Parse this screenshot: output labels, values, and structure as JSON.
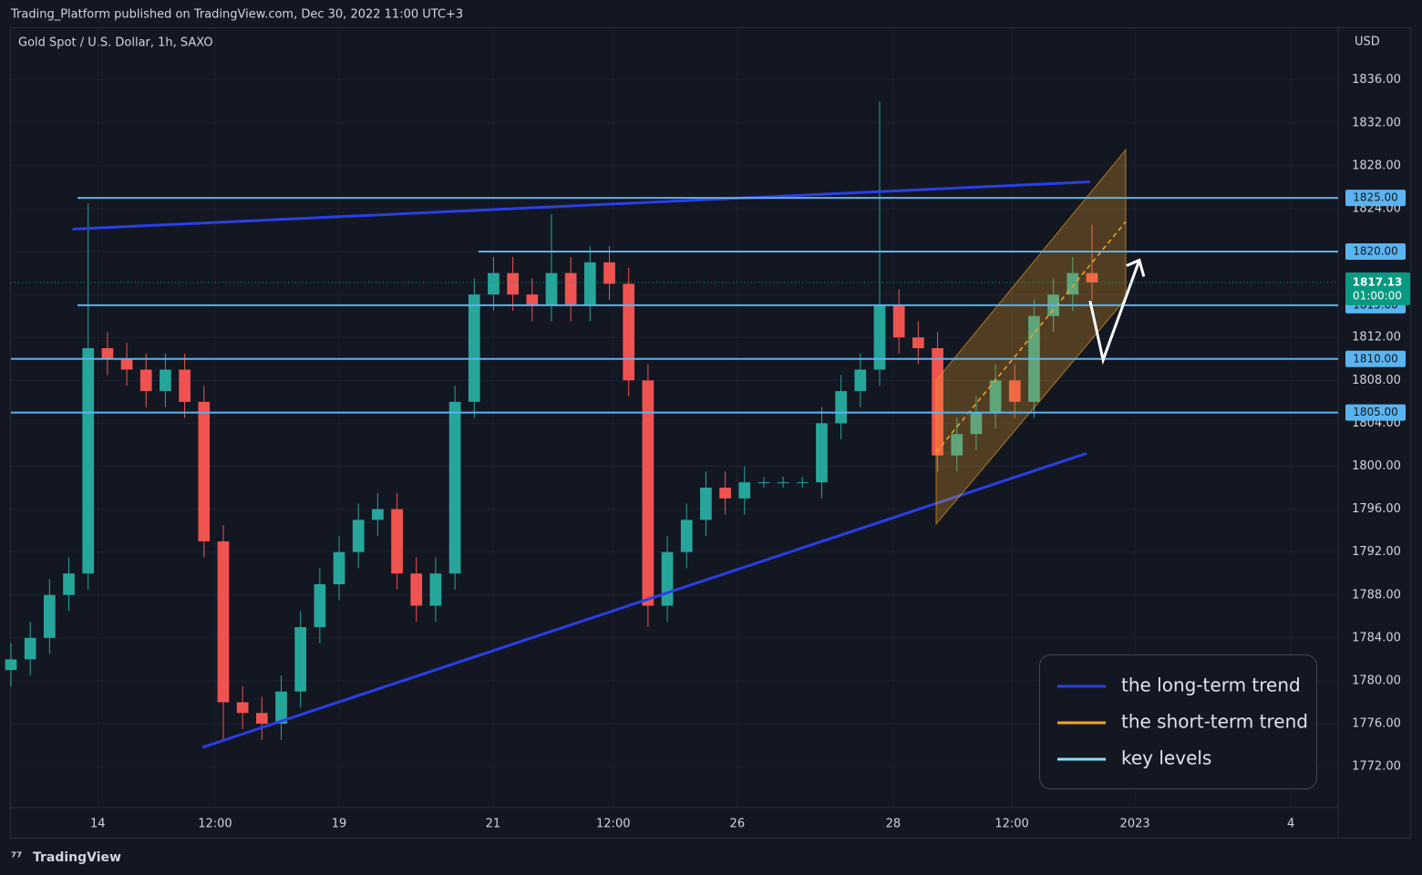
{
  "header": "Trading_Platform published on TradingView.com, Dec 30, 2022 11:00 UTC+3",
  "footer": "TradingView",
  "chart_data": {
    "type": "candlestick",
    "title": "Gold Spot / U.S. Dollar, 1h, SAXO",
    "currency": "USD",
    "up_color": "#26a69a",
    "down_color": "#ef5350",
    "xlim": [
      0,
      275
    ],
    "ylim": [
      1765.3,
      1840.9
    ],
    "xticks": [
      {
        "value": 18,
        "label": "14"
      },
      {
        "value": 42.3,
        "label": "12:00"
      },
      {
        "value": 68,
        "label": "19"
      },
      {
        "value": 99.9,
        "label": "21"
      },
      {
        "value": 124.8,
        "label": "12:00"
      },
      {
        "value": 150.5,
        "label": "26"
      },
      {
        "value": 182.8,
        "label": "28"
      },
      {
        "value": 207.4,
        "label": "12:00"
      },
      {
        "value": 232.9,
        "label": "2023"
      },
      {
        "value": 265.2,
        "label": "4"
      }
    ],
    "yticks": [
      {
        "value": 1836,
        "label": "1836.00"
      },
      {
        "value": 1832,
        "label": "1832.00"
      },
      {
        "value": 1828,
        "label": "1828.00"
      },
      {
        "value": 1824,
        "label": "1824.00"
      },
      {
        "value": 1820,
        "label": "1820.00"
      },
      {
        "value": 1816,
        "label": "1816.00"
      },
      {
        "value": 1812,
        "label": "1812.00"
      },
      {
        "value": 1808,
        "label": "1808.00"
      },
      {
        "value": 1804,
        "label": "1804.00"
      },
      {
        "value": 1800,
        "label": "1800.00"
      },
      {
        "value": 1796,
        "label": "1796.00"
      },
      {
        "value": 1792,
        "label": "1792.00"
      },
      {
        "value": 1788,
        "label": "1788.00"
      },
      {
        "value": 1784,
        "label": "1784.00"
      },
      {
        "value": 1780,
        "label": "1780.00"
      },
      {
        "value": 1776,
        "label": "1776.00"
      },
      {
        "value": 1772,
        "label": "1772.00"
      }
    ],
    "x": [
      0,
      4,
      8,
      12,
      16,
      20,
      24,
      28,
      32,
      36,
      40,
      44,
      48,
      52,
      56,
      60,
      64,
      68,
      72,
      76,
      80,
      84,
      88,
      92,
      96,
      100,
      104,
      108,
      112,
      116,
      120,
      124,
      128,
      132,
      136,
      140,
      144,
      148,
      152,
      156,
      160,
      164,
      168,
      172,
      176,
      180,
      184,
      188,
      192,
      196,
      200,
      204,
      208,
      212,
      216,
      220,
      224
    ],
    "open": [
      1781,
      1782,
      1784,
      1788,
      1790,
      1811,
      1810,
      1809,
      1807,
      1809,
      1806,
      1793,
      1778,
      1777,
      1776,
      1779,
      1785,
      1789,
      1792,
      1795,
      1796,
      1790,
      1787,
      1790,
      1806,
      1816,
      1818,
      1816,
      1815,
      1818,
      1815,
      1819,
      1817,
      1808,
      1787,
      1792,
      1795,
      1798,
      1797,
      1798.5,
      1798.5,
      1798.5,
      1798.5,
      1804,
      1807,
      1809,
      1815,
      1812,
      1811,
      1801,
      1803,
      1805,
      1808,
      1806,
      1814,
      1816,
      1818
    ],
    "high": [
      1783.5,
      1785.5,
      1789.5,
      1791.5,
      1824.5,
      1812.5,
      1811.5,
      1810.5,
      1810.5,
      1810.5,
      1807.5,
      1794.5,
      1779.5,
      1778.5,
      1780.5,
      1786.5,
      1790.5,
      1793.5,
      1796.5,
      1797.5,
      1797.5,
      1791.5,
      1791.5,
      1807.5,
      1817.5,
      1819.5,
      1819.5,
      1817.5,
      1823.5,
      1819.5,
      1820.5,
      1820.5,
      1818.5,
      1809.5,
      1793.5,
      1796.5,
      1799.5,
      1799.5,
      1800,
      1799,
      1799,
      1799,
      1805.5,
      1808.5,
      1810.5,
      1834,
      1816.5,
      1813.5,
      1812.5,
      1804.5,
      1806.5,
      1809.5,
      1809.5,
      1815.5,
      1817.5,
      1819.5,
      1822.5
    ],
    "low": [
      1779.5,
      1780.5,
      1782.5,
      1786.5,
      1788.5,
      1808.5,
      1807.5,
      1805.5,
      1805.5,
      1804.5,
      1791.5,
      1774.5,
      1775.5,
      1774.5,
      1774.5,
      1777.5,
      1783.5,
      1787.5,
      1790.5,
      1793.5,
      1788.5,
      1785.5,
      1785.5,
      1788.5,
      1804.5,
      1814.5,
      1814.5,
      1813.5,
      1813.5,
      1813.5,
      1813.5,
      1815.5,
      1806.5,
      1785,
      1785.5,
      1790.5,
      1793.5,
      1795.5,
      1795.5,
      1798,
      1798,
      1798,
      1797,
      1802.5,
      1805.5,
      1807.5,
      1810.5,
      1809.5,
      1799.5,
      1799.5,
      1801.5,
      1803.5,
      1804.5,
      1804.5,
      1812.5,
      1814.5,
      1815.5
    ],
    "close": [
      1782,
      1784,
      1788,
      1790,
      1811,
      1810,
      1809,
      1807,
      1809,
      1806,
      1793,
      1778,
      1777,
      1776,
      1779,
      1785,
      1789,
      1792,
      1795,
      1796,
      1790,
      1787,
      1790,
      1806,
      1816,
      1818,
      1816,
      1815,
      1818,
      1815,
      1819,
      1817,
      1808,
      1787,
      1792,
      1795,
      1798,
      1797,
      1798.5,
      1798.5,
      1798.5,
      1798.5,
      1804,
      1807,
      1809,
      1815,
      1812,
      1811,
      1801,
      1803,
      1805,
      1808,
      1806,
      1814,
      1816,
      1818,
      1817.13
    ],
    "last_price": 1817.13,
    "last_price_color": "#089981",
    "countdown": "01:00:00",
    "legend": [
      {
        "label": "the long-term trend",
        "color": "#2a3fe6",
        "lines": [
          {
            "x": [
              12.8,
              223.6
            ],
            "y": [
              1822.1,
              1826.5
            ]
          },
          {
            "x": [
              39.7,
              222.9
            ],
            "y": [
              1773.8,
              1801.2
            ]
          }
        ]
      },
      {
        "label": "the short-term trend",
        "color": "#f5a623",
        "channel": {
          "x": [
            191.7,
            231
          ],
          "upper": [
            1808,
            1829.5
          ],
          "lower": [
            1794.6,
            1815.6
          ],
          "mid": [
            1801.3,
            1822.8
          ]
        }
      },
      {
        "label": "key levels",
        "color": "#8ee0f5",
        "levels": [
          {
            "value": 1825,
            "label": "1825.00",
            "start": 13.8
          },
          {
            "value": 1820,
            "label": "1820.00",
            "start": 96.9
          },
          {
            "value": 1815,
            "label": "1815.00",
            "start": 13.8
          },
          {
            "value": 1810,
            "label": "1810.00",
            "start": 0
          },
          {
            "value": 1805,
            "label": "1805.00",
            "start": 0
          }
        ]
      }
    ],
    "arrow": {
      "x": [
        223.6,
        226.3,
        233.8
      ],
      "y": [
        1815.4,
        1809.9,
        1819.2
      ],
      "color": "#ffffff"
    }
  }
}
